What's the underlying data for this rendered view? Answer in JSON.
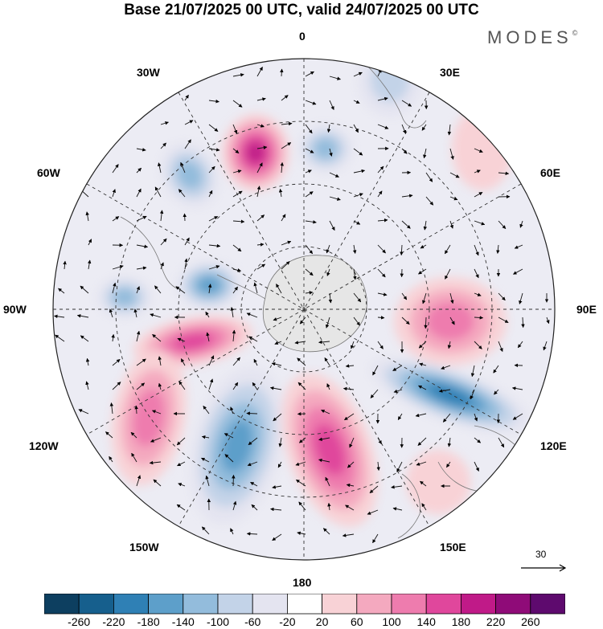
{
  "title": "Base 21/07/2025 00 UTC, valid 24/07/2025 00 UTC",
  "logo": "MODES",
  "logo_mark": "©",
  "longitude_labels": {
    "lon_0": "0",
    "lon_30e": "30E",
    "lon_60e": "60E",
    "lon_90e": "90E",
    "lon_120e": "120E",
    "lon_150e": "150E",
    "lon_180": "180",
    "lon_150w": "150W",
    "lon_120w": "120W",
    "lon_90w": "90W",
    "lon_60w": "60W",
    "lon_30w": "30W"
  },
  "reference_vector": "30",
  "colorbar": {
    "labels": [
      "-260",
      "-220",
      "-180",
      "-140",
      "-100",
      "-60",
      "-20",
      "20",
      "60",
      "100",
      "140",
      "180",
      "220",
      "260"
    ],
    "colors": [
      "#0d3f60",
      "#165f8d",
      "#2f80b5",
      "#5d9fca",
      "#93bcdc",
      "#c3d3e8",
      "#e4e4f0",
      "#ffffff",
      "#f8d2d6",
      "#f4a9bf",
      "#ee7cae",
      "#e0479c",
      "#c01a88",
      "#8f0b78",
      "#5e0a6e"
    ]
  },
  "anomalies": [
    {
      "name": "neg-30w-60s",
      "value": -140
    },
    {
      "name": "pos-0-55s",
      "value": 200
    },
    {
      "name": "neg-10e-55s",
      "value": -120
    },
    {
      "name": "neg-30e-45s",
      "value": -80
    },
    {
      "name": "pos-60e-45s",
      "value": 60
    },
    {
      "name": "neg-85w-60s",
      "value": -150
    },
    {
      "name": "neg-70w-65s",
      "value": -160
    },
    {
      "name": "pos-90e-60s",
      "value": 130
    },
    {
      "name": "neg-115e-55s",
      "value": -220
    },
    {
      "name": "pos-110w-60s",
      "value": 160
    },
    {
      "name": "pos-150w-45s",
      "value": 130
    },
    {
      "name": "neg-165w-55s",
      "value": -180
    },
    {
      "name": "pos-170e-55s",
      "value": 170
    },
    {
      "name": "pos-145e-45s",
      "value": 60
    }
  ]
}
